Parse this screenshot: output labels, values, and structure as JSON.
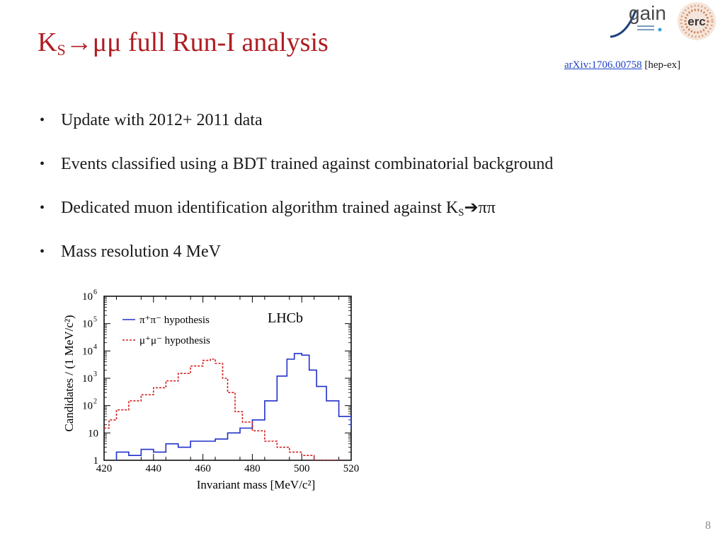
{
  "slide": {
    "title_main": "K",
    "title_sub": "S",
    "title_rest": "→μμ full Run-I analysis",
    "ref_link": "arXiv:1706.00758",
    "ref_tail": " [hep-ex]",
    "page_number": "8"
  },
  "logos": {
    "gain": "gain",
    "erc": "erc"
  },
  "bullets": [
    {
      "text": "Update with 2012+ 2011 data"
    },
    {
      "text": "Events classified using a BDT trained against combinatorial background"
    },
    {
      "text": "Dedicated muon identification algorithm trained against K",
      "sub": "S",
      "tail": "ππ"
    },
    {
      "text": "Mass resolution 4 MeV"
    }
  ],
  "chart_data": {
    "type": "line",
    "title": "LHCb",
    "xlabel": "Invariant mass [MeV/c²]",
    "ylabel": "Candidates / (1 MeV/c²)",
    "xlim": [
      420,
      520
    ],
    "ylim": [
      1,
      1000000
    ],
    "y_scale": "log",
    "x_ticks": [
      420,
      440,
      460,
      480,
      500,
      520
    ],
    "y_ticks": [
      {
        "v": 1,
        "label": "1"
      },
      {
        "v": 10,
        "label": "10"
      },
      {
        "v": 100,
        "label": "10",
        "exp": "2"
      },
      {
        "v": 1000,
        "label": "10",
        "exp": "3"
      },
      {
        "v": 10000,
        "label": "10",
        "exp": "4"
      },
      {
        "v": 100000,
        "label": "10",
        "exp": "5"
      },
      {
        "v": 1000000,
        "label": "10",
        "exp": "6"
      }
    ],
    "legend_placement": "top-left",
    "series": [
      {
        "name": "π⁺π⁻ hypothesis",
        "color": "#2030c8",
        "style": "solid",
        "x": [
          420,
          425,
          430,
          435,
          440,
          445,
          450,
          455,
          460,
          465,
          470,
          475,
          480,
          485,
          490,
          494,
          497,
          500,
          503,
          506,
          510,
          515,
          520
        ],
        "y": [
          0.8,
          2,
          1.5,
          2.5,
          2,
          4,
          3,
          5,
          5,
          6,
          10,
          15,
          30,
          150,
          1200,
          5000,
          8000,
          7000,
          2000,
          500,
          150,
          40,
          15
        ]
      },
      {
        "name": "μ⁺μ⁻ hypothesis",
        "color": "#d42020",
        "style": "dashed",
        "x": [
          420,
          422,
          425,
          430,
          435,
          440,
          445,
          450,
          455,
          460,
          463,
          465,
          468,
          470,
          473,
          476,
          480,
          485,
          490,
          495,
          500,
          505,
          510,
          515,
          520
        ],
        "y": [
          15,
          30,
          70,
          150,
          250,
          450,
          800,
          1500,
          2800,
          4500,
          5000,
          3500,
          1000,
          300,
          60,
          25,
          12,
          5,
          3,
          2,
          1.5,
          1,
          1,
          0.8,
          0.8
        ]
      }
    ]
  },
  "colors": {
    "title": "#b01c22",
    "link": "#1f3fc4",
    "page_number": "#8c8c8c"
  }
}
